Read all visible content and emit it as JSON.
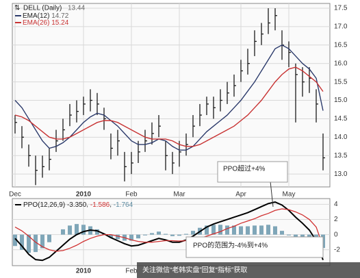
{
  "chart_data": [
    {
      "type": "ohlc",
      "title": "DELL (Daily)",
      "title_value": "13.44",
      "color": "#1a1a1a",
      "categories": [
        "Dec",
        null,
        null,
        null,
        null,
        null,
        null,
        null,
        null,
        null,
        "2010",
        null,
        null,
        null,
        null,
        null,
        null,
        "Feb",
        null,
        null,
        null,
        null,
        null,
        null,
        "Mar",
        null,
        null,
        null,
        null,
        null,
        null,
        null,
        null,
        "Apr",
        null,
        null,
        null,
        null,
        null,
        null,
        "May",
        null,
        null,
        null,
        null,
        null
      ],
      "high": [
        14.6,
        14.3,
        13.8,
        13.5,
        13.5,
        13.7,
        14.2,
        14.5,
        14.9,
        15.0,
        15.1,
        15.3,
        15.2,
        14.8,
        14.1,
        14.2,
        13.6,
        13.6,
        13.9,
        14.2,
        14.4,
        14.6,
        13.9,
        13.6,
        13.9,
        14.1,
        14.6,
        14.9,
        15.1,
        15.1,
        15.3,
        15.5,
        15.7,
        16.1,
        16.4,
        16.9,
        17.1,
        17.5,
        17.5,
        16.9,
        16.6,
        16.0,
        15.9,
        15.9,
        15.3,
        14.1
      ],
      "low": [
        14.1,
        13.7,
        13.2,
        12.7,
        12.9,
        13.1,
        13.6,
        13.9,
        14.3,
        14.4,
        14.6,
        14.7,
        14.6,
        14.2,
        13.4,
        13.5,
        12.8,
        13.0,
        13.3,
        13.6,
        13.8,
        14.0,
        13.1,
        13.0,
        13.2,
        13.5,
        14.0,
        14.3,
        14.6,
        14.5,
        14.7,
        14.9,
        15.1,
        15.5,
        15.7,
        16.2,
        16.5,
        16.8,
        16.9,
        16.1,
        15.9,
        14.4,
        15.1,
        15.2,
        14.4,
        13.1
      ],
      "close": [
        14.4,
        14.0,
        13.5,
        13.1,
        13.2,
        13.4,
        13.9,
        14.2,
        14.6,
        14.7,
        14.9,
        15.0,
        14.9,
        14.5,
        13.7,
        13.9,
        13.2,
        13.3,
        13.6,
        13.9,
        14.1,
        14.3,
        13.5,
        13.3,
        13.6,
        13.8,
        14.3,
        14.6,
        14.9,
        14.8,
        15.0,
        15.2,
        15.4,
        15.8,
        16.0,
        16.6,
        16.8,
        17.1,
        17.3,
        16.5,
        16.3,
        15.7,
        15.5,
        15.6,
        14.9,
        13.44
      ],
      "series": [
        {
          "name": "EMA(12)",
          "last_label": "14.72",
          "color": "#2b3a6b",
          "values": [
            15.0,
            14.8,
            14.5,
            14.2,
            13.9,
            13.7,
            13.75,
            13.85,
            14.0,
            14.2,
            14.4,
            14.55,
            14.65,
            14.6,
            14.45,
            14.3,
            14.1,
            13.9,
            13.8,
            13.8,
            13.85,
            13.95,
            13.9,
            13.75,
            13.65,
            13.65,
            13.75,
            13.95,
            14.15,
            14.3,
            14.45,
            14.6,
            14.8,
            15.0,
            15.25,
            15.5,
            15.8,
            16.1,
            16.4,
            16.5,
            16.4,
            16.2,
            16.0,
            15.85,
            15.6,
            14.72
          ]
        },
        {
          "name": "EMA(26)",
          "last_label": "15.24",
          "color": "#c83232",
          "values": [
            14.6,
            14.55,
            14.45,
            14.3,
            14.15,
            14.0,
            13.95,
            13.95,
            14.0,
            14.1,
            14.2,
            14.3,
            14.4,
            14.45,
            14.45,
            14.4,
            14.3,
            14.2,
            14.1,
            14.0,
            13.95,
            13.95,
            13.95,
            13.9,
            13.8,
            13.75,
            13.75,
            13.8,
            13.9,
            14.0,
            14.1,
            14.2,
            14.3,
            14.45,
            14.6,
            14.8,
            15.0,
            15.25,
            15.5,
            15.7,
            15.85,
            15.9,
            15.8,
            15.65,
            15.5,
            15.24
          ]
        }
      ],
      "ylim": [
        12.65,
        17.63
      ],
      "yticks": [
        {
          "value": 13,
          "label": "13.0"
        },
        13.5,
        {
          "value": 14,
          "label": "14.0"
        },
        14.5,
        {
          "value": 15,
          "label": "15.0"
        },
        15.5,
        {
          "value": 16,
          "label": "16.0"
        },
        16.5,
        {
          "value": 17,
          "label": "17.0"
        },
        17.5
      ],
      "grid": true,
      "annotation": "PPO超过+4%"
    },
    {
      "type": "ppo",
      "title": "PPO(12,26,9)",
      "categories": [
        null,
        null,
        null,
        null,
        null,
        null,
        null,
        null,
        null,
        null,
        "2010",
        null,
        null,
        null,
        null,
        null,
        null,
        "Feb",
        null,
        null,
        null,
        null,
        null,
        null,
        null,
        null,
        null,
        null,
        null,
        null,
        null,
        null,
        null,
        null,
        null,
        null,
        null,
        null,
        null,
        null,
        null,
        null,
        null,
        null,
        null,
        null
      ],
      "series": [
        {
          "kind": "line",
          "last_label": "-3.350",
          "color": "#000000",
          "values": [
            -0.5,
            -1.5,
            -2.6,
            -3.3,
            -3.4,
            -3.0,
            -2.2,
            -1.4,
            -0.6,
            0.0,
            0.4,
            0.6,
            0.5,
            0.1,
            -0.4,
            -0.8,
            -1.2,
            -1.5,
            -1.4,
            -1.1,
            -0.8,
            -0.5,
            -0.7,
            -1.0,
            -1.0,
            -0.7,
            -0.2,
            0.4,
            1.0,
            1.4,
            1.7,
            2.0,
            2.3,
            2.6,
            2.9,
            3.3,
            3.7,
            4.1,
            4.3,
            3.9,
            3.2,
            2.3,
            1.5,
            0.6,
            -0.8,
            -3.35
          ]
        },
        {
          "kind": "line",
          "last_label": "-1.586",
          "color": "#d03030",
          "values": [
            1.0,
            0.5,
            -0.2,
            -1.0,
            -1.6,
            -2.0,
            -2.2,
            -2.1,
            -1.8,
            -1.4,
            -0.9,
            -0.5,
            -0.2,
            0.0,
            0.0,
            -0.2,
            -0.4,
            -0.7,
            -0.9,
            -1.0,
            -1.0,
            -0.9,
            -0.8,
            -0.8,
            -0.85,
            -0.8,
            -0.7,
            -0.5,
            -0.2,
            0.1,
            0.4,
            0.8,
            1.1,
            1.5,
            1.8,
            2.1,
            2.5,
            2.8,
            3.2,
            3.4,
            3.3,
            3.0,
            2.6,
            2.0,
            1.0,
            -1.586
          ]
        },
        {
          "kind": "bar",
          "last_label": "-1.764",
          "color": "#7fa6b8",
          "values": [
            -1.5,
            -2.0,
            -2.4,
            -2.3,
            -1.8,
            -1.0,
            0.0,
            0.7,
            1.2,
            1.4,
            1.3,
            1.1,
            0.7,
            0.1,
            -0.4,
            -0.6,
            -0.8,
            -0.8,
            -0.5,
            -0.1,
            0.2,
            0.4,
            0.1,
            -0.2,
            -0.15,
            0.1,
            0.5,
            0.9,
            1.2,
            1.3,
            1.3,
            1.2,
            1.2,
            1.1,
            1.1,
            1.2,
            1.2,
            1.3,
            1.1,
            0.5,
            -0.1,
            -0.7,
            -1.1,
            -1.4,
            -1.8,
            -1.764
          ]
        }
      ],
      "ylim": [
        -4.1,
        4.76
      ],
      "yticks": [
        4,
        2,
        0,
        -2
      ],
      "grid": true,
      "annotation": "PPO的范围为-4%到+4%"
    }
  ],
  "watermark": "关注微信“老韩实盘”回复“指标”获取"
}
